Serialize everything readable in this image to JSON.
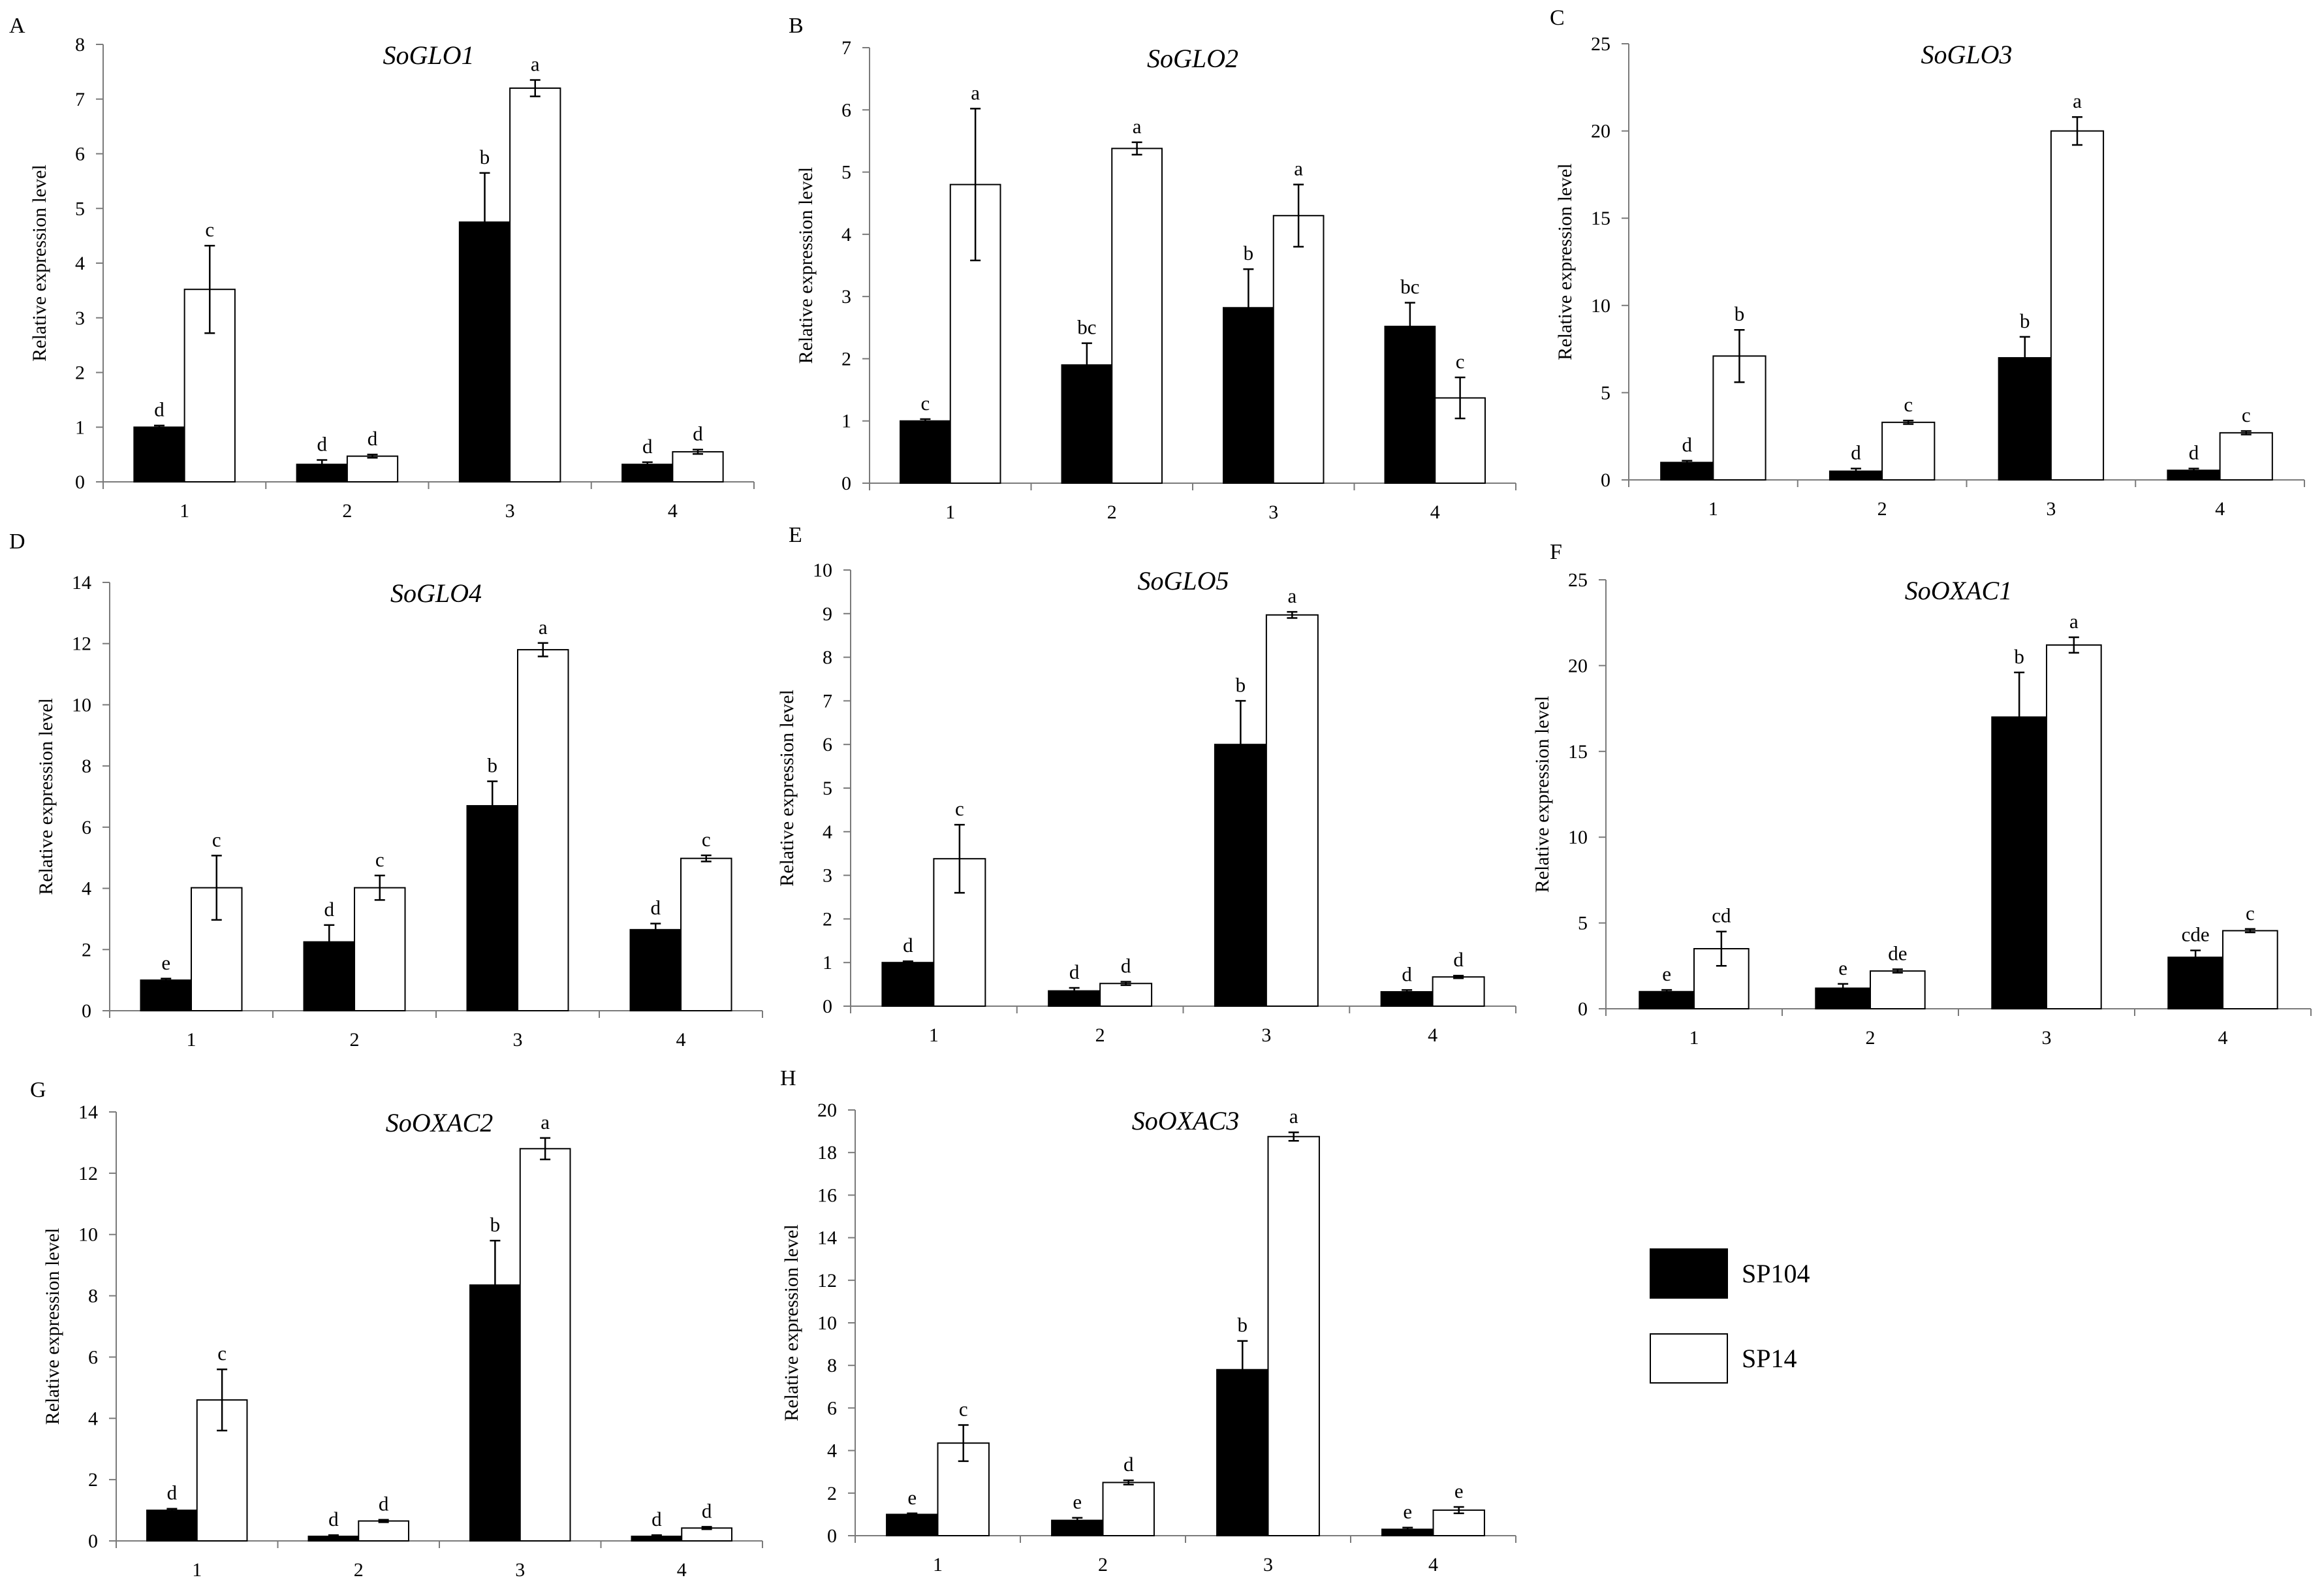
{
  "chart_data": [
    {
      "panel": "A",
      "type": "bar",
      "title": "SoGLO1",
      "ylabel": "Relative expression level",
      "xlabel": "",
      "ylim": [
        0,
        8
      ],
      "yticks": [
        "0",
        "1",
        "2",
        "3",
        "4",
        "5",
        "6",
        "7",
        "8"
      ],
      "categories": [
        "1",
        "2",
        "3",
        "4"
      ],
      "series": [
        {
          "name": "SP104",
          "values": [
            1.0,
            0.32,
            4.75,
            0.32
          ],
          "errors": [
            0.03,
            0.08,
            0.9,
            0.04
          ],
          "labels": [
            "d",
            "d",
            "b",
            "d"
          ]
        },
        {
          "name": "SP14",
          "values": [
            3.52,
            0.47,
            7.2,
            0.55
          ],
          "errors": [
            0.8,
            0.03,
            0.15,
            0.04
          ],
          "labels": [
            "c",
            "d",
            "a",
            "d"
          ]
        }
      ]
    },
    {
      "panel": "B",
      "type": "bar",
      "title": "SoGLO2",
      "ylabel": "Relative expression level",
      "xlabel": "",
      "ylim": [
        0,
        7
      ],
      "yticks": [
        "0",
        "1",
        "2",
        "3",
        "4",
        "5",
        "6",
        "7"
      ],
      "categories": [
        "1",
        "2",
        "3",
        "4"
      ],
      "series": [
        {
          "name": "SP104",
          "values": [
            1.0,
            1.9,
            2.82,
            2.52
          ],
          "errors": [
            0.03,
            0.35,
            0.62,
            0.38
          ],
          "labels": [
            "c",
            "bc",
            "b",
            "bc"
          ]
        },
        {
          "name": "SP14",
          "values": [
            4.8,
            5.38,
            4.3,
            1.37
          ],
          "errors": [
            1.22,
            0.1,
            0.5,
            0.33
          ],
          "labels": [
            "a",
            "a",
            "a",
            "c"
          ]
        }
      ]
    },
    {
      "panel": "C",
      "type": "bar",
      "title": "SoGLO3",
      "ylabel": "Relative expression level",
      "xlabel": "",
      "ylim": [
        0,
        25
      ],
      "yticks": [
        "0",
        "5",
        "10",
        "15",
        "20",
        "25"
      ],
      "categories": [
        "1",
        "2",
        "3",
        "4"
      ],
      "series": [
        {
          "name": "SP104",
          "values": [
            1.0,
            0.5,
            7.0,
            0.55
          ],
          "errors": [
            0.1,
            0.15,
            1.2,
            0.1
          ],
          "labels": [
            "d",
            "d",
            "b",
            "d"
          ]
        },
        {
          "name": "SP14",
          "values": [
            7.1,
            3.3,
            20.0,
            2.7
          ],
          "errors": [
            1.5,
            0.1,
            0.8,
            0.1
          ],
          "labels": [
            "b",
            "c",
            "a",
            "c"
          ]
        }
      ]
    },
    {
      "panel": "D",
      "type": "bar",
      "title": "SoGLO4",
      "ylabel": "Relative expression level",
      "xlabel": "",
      "ylim": [
        0,
        14
      ],
      "yticks": [
        "0",
        "2",
        "4",
        "6",
        "8",
        "10",
        "12",
        "14"
      ],
      "categories": [
        "1",
        "2",
        "3",
        "4"
      ],
      "series": [
        {
          "name": "SP104",
          "values": [
            1.0,
            2.25,
            6.7,
            2.65
          ],
          "errors": [
            0.05,
            0.55,
            0.8,
            0.2
          ],
          "labels": [
            "e",
            "d",
            "b",
            "d"
          ]
        },
        {
          "name": "SP14",
          "values": [
            4.02,
            4.02,
            11.8,
            4.98
          ],
          "errors": [
            1.05,
            0.4,
            0.22,
            0.1
          ],
          "labels": [
            "c",
            "c",
            "a",
            "c"
          ]
        }
      ]
    },
    {
      "panel": "E",
      "type": "bar",
      "title": "SoGLO5",
      "ylabel": "Relative expression level",
      "xlabel": "",
      "ylim": [
        0,
        10
      ],
      "yticks": [
        "0",
        "1",
        "2",
        "3",
        "4",
        "5",
        "6",
        "7",
        "8",
        "9",
        "10"
      ],
      "categories": [
        "1",
        "2",
        "3",
        "4"
      ],
      "series": [
        {
          "name": "SP104",
          "values": [
            1.0,
            0.35,
            6.0,
            0.33
          ],
          "errors": [
            0.03,
            0.07,
            1.0,
            0.04
          ],
          "labels": [
            "d",
            "d",
            "b",
            "d"
          ]
        },
        {
          "name": "SP14",
          "values": [
            3.38,
            0.52,
            8.97,
            0.67
          ],
          "errors": [
            0.78,
            0.04,
            0.07,
            0.03
          ],
          "labels": [
            "c",
            "d",
            "a",
            "d"
          ]
        }
      ]
    },
    {
      "panel": "F",
      "type": "bar",
      "title": "SoOXAC1",
      "ylabel": "Relative expression level",
      "xlabel": "",
      "ylim": [
        0,
        25
      ],
      "yticks": [
        "0",
        "5",
        "10",
        "15",
        "20",
        "25"
      ],
      "categories": [
        "1",
        "2",
        "3",
        "4"
      ],
      "series": [
        {
          "name": "SP104",
          "values": [
            1.0,
            1.2,
            17.0,
            3.0
          ],
          "errors": [
            0.1,
            0.25,
            2.6,
            0.4
          ],
          "labels": [
            "e",
            "e",
            "b",
            "cde"
          ]
        },
        {
          "name": "SP14",
          "values": [
            3.5,
            2.2,
            21.2,
            4.55
          ],
          "errors": [
            1.0,
            0.1,
            0.45,
            0.1
          ],
          "labels": [
            "cd",
            "de",
            "a",
            "c"
          ]
        }
      ]
    },
    {
      "panel": "G",
      "type": "bar",
      "title": "SoOXAC2",
      "ylabel": "Relative expression level",
      "xlabel": "",
      "ylim": [
        0,
        14
      ],
      "yticks": [
        "0",
        "2",
        "4",
        "6",
        "8",
        "10",
        "12",
        "14"
      ],
      "categories": [
        "1",
        "2",
        "3",
        "4"
      ],
      "series": [
        {
          "name": "SP104",
          "values": [
            1.0,
            0.15,
            8.35,
            0.15
          ],
          "errors": [
            0.05,
            0.04,
            1.45,
            0.04
          ],
          "labels": [
            "d",
            "d",
            "b",
            "d"
          ]
        },
        {
          "name": "SP14",
          "values": [
            4.6,
            0.65,
            12.8,
            0.42
          ],
          "errors": [
            1.0,
            0.04,
            0.35,
            0.04
          ],
          "labels": [
            "c",
            "d",
            "a",
            "d"
          ]
        }
      ]
    },
    {
      "panel": "H",
      "type": "bar",
      "title": "SoOXAC3",
      "ylabel": "Relative expression level",
      "xlabel": "",
      "ylim": [
        0,
        20
      ],
      "yticks": [
        "0",
        "2",
        "4",
        "6",
        "8",
        "10",
        "12",
        "14",
        "16",
        "18",
        "20"
      ],
      "categories": [
        "1",
        "2",
        "3",
        "4"
      ],
      "series": [
        {
          "name": "SP104",
          "values": [
            1.0,
            0.72,
            7.8,
            0.3
          ],
          "errors": [
            0.05,
            0.12,
            1.35,
            0.08
          ],
          "labels": [
            "e",
            "e",
            "b",
            "e"
          ]
        },
        {
          "name": "SP14",
          "values": [
            4.35,
            2.5,
            18.75,
            1.2
          ],
          "errors": [
            0.85,
            0.1,
            0.2,
            0.15
          ],
          "labels": [
            "c",
            "d",
            "a",
            "e"
          ]
        }
      ]
    }
  ],
  "legend": {
    "entries": [
      {
        "name": "SP104",
        "color": "#000000"
      },
      {
        "name": "SP14",
        "color": "#ffffff"
      }
    ]
  }
}
